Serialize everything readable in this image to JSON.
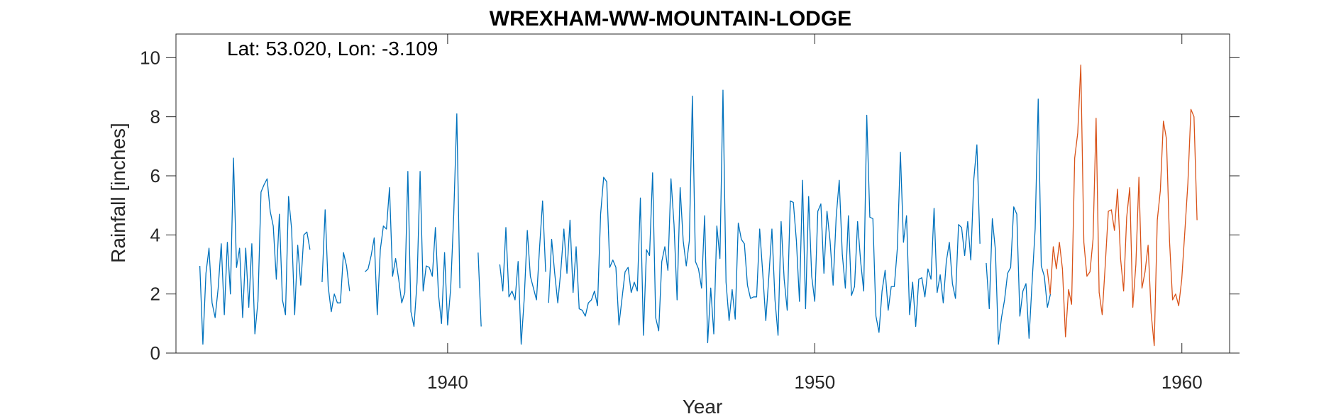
{
  "chart_data": {
    "type": "line",
    "title": "WREXHAM-WW-MOUNTAIN-LODGE",
    "annotation": "Lat: 53.020, Lon: -3.109",
    "xlabel": "Year",
    "ylabel": "Rainfall [inches]",
    "xlim": [
      1932.6,
      1961.3
    ],
    "ylim": [
      0,
      10.8
    ],
    "x_ticks": [
      1940,
      1950,
      1960
    ],
    "y_ticks": [
      0,
      2,
      4,
      6,
      8,
      10
    ],
    "grid": false,
    "series": [
      {
        "color": "#0072BD",
        "segments": [
          {
            "start": 1933.25,
            "values": [
              2.95,
              0.3,
              2.7,
              3.55,
              1.7,
              1.2,
              2.2,
              3.7,
              1.3,
              3.75,
              2.0,
              6.6,
              2.9,
              3.55,
              1.2,
              3.55,
              1.55,
              3.7,
              0.65,
              1.75,
              5.45,
              5.7,
              5.9,
              4.8,
              4.3,
              2.5,
              4.7,
              1.8,
              1.3,
              5.3,
              4.2,
              1.3,
              3.65,
              2.3,
              4.0,
              4.1,
              3.5
            ]
          },
          {
            "start": 1936.58,
            "values": [
              2.4,
              4.85,
              2.25,
              1.4,
              2.0,
              1.7,
              1.7,
              3.4,
              2.95,
              2.1
            ]
          },
          {
            "start": 1937.75,
            "values": [
              2.75,
              2.85,
              3.3,
              3.9,
              1.3,
              3.5,
              4.3,
              4.2,
              5.6,
              2.6,
              3.2,
              2.5,
              1.7,
              2.05,
              6.15,
              1.4,
              0.9,
              2.4,
              6.15,
              2.1,
              2.95,
              2.9,
              2.6,
              4.25,
              2.0,
              1.0,
              3.4,
              0.95,
              2.2,
              4.7,
              8.1,
              2.2
            ]
          },
          {
            "start": 1940.83,
            "values": [
              3.4,
              0.9
            ]
          },
          {
            "start": 1941.42,
            "values": [
              3.0,
              2.1,
              4.25,
              1.9,
              2.1,
              1.8,
              3.1,
              0.3,
              1.85,
              4.15,
              2.6,
              2.2,
              1.8,
              3.55,
              5.15,
              2.75
            ]
          },
          {
            "start": 1942.75,
            "values": [
              1.7,
              3.85,
              2.7,
              1.7,
              2.8,
              4.2,
              2.7,
              4.5,
              2.05,
              3.6,
              1.5,
              1.45,
              1.25,
              1.7,
              1.8,
              2.1,
              1.6,
              4.7,
              5.95,
              5.8,
              2.9,
              3.15,
              2.9,
              0.95,
              1.85,
              2.75,
              2.9,
              2.05,
              2.4,
              2.1,
              5.25,
              0.6,
              3.5,
              3.3,
              6.1,
              1.2,
              0.75,
              3.1,
              3.6,
              2.8,
              5.9,
              4.35,
              1.8,
              5.6,
              3.8,
              2.95,
              3.8,
              8.7,
              3.1,
              2.85,
              2.2,
              4.65,
              0.35,
              2.2,
              0.65,
              4.3,
              3.2,
              8.9,
              2.4,
              1.1,
              2.15,
              1.15,
              4.4,
              3.85,
              3.7,
              2.3,
              1.85,
              1.9,
              1.9,
              4.2,
              2.7,
              1.1,
              2.6,
              4.2,
              1.8,
              0.6,
              4.45,
              2.5,
              1.45,
              5.15,
              5.1,
              3.8,
              1.75,
              5.85,
              1.5,
              5.3,
              2.6,
              1.75,
              4.8,
              5.05,
              2.7,
              4.8,
              3.8,
              2.3,
              4.6,
              5.85,
              3.35,
              2.2,
              4.65,
              1.95,
              2.25,
              4.45,
              3.1,
              2.1,
              8.05,
              4.6,
              4.55,
              1.25,
              0.7,
              2.1,
              2.8,
              1.45,
              2.25,
              2.25,
              3.55,
              6.8,
              3.75,
              4.65,
              1.3,
              2.4,
              0.9,
              2.5,
              2.55,
              1.9,
              2.85,
              2.5,
              4.9,
              2.05,
              2.65,
              1.7,
              3.1,
              3.75,
              2.35,
              1.85,
              4.35,
              4.25,
              3.3,
              4.45,
              3.15,
              5.9,
              7.05,
              3.7
            ]
          },
          {
            "start": 1954.67,
            "values": [
              3.05,
              1.5,
              4.55,
              3.5,
              0.3,
              1.2,
              1.8,
              2.7,
              2.9,
              4.95,
              4.7,
              1.25,
              2.1,
              2.35,
              0.5,
              2.4,
              4.2,
              8.6,
              2.95,
              2.6,
              1.55,
              2.0
            ]
          }
        ]
      },
      {
        "color": "#D95319",
        "segments": [
          {
            "start": 1956.33,
            "values": [
              2.85,
              2.0,
              3.6,
              2.85,
              3.75,
              2.85,
              0.55,
              2.15,
              1.65,
              6.6,
              7.45,
              9.75,
              3.75,
              2.6,
              2.75,
              3.85,
              7.95,
              2.05,
              1.3,
              3.0,
              4.8,
              4.85,
              4.15,
              5.55,
              3.2,
              2.1,
              4.6,
              5.6,
              1.55,
              3.0,
              5.95,
              2.2,
              2.75,
              3.65,
              1.35,
              0.25,
              4.5,
              5.5,
              7.85,
              7.25,
              3.8,
              1.8,
              2.0,
              1.6,
              2.5,
              4.1,
              5.75,
              8.25,
              8.0,
              4.5
            ]
          }
        ]
      }
    ]
  }
}
